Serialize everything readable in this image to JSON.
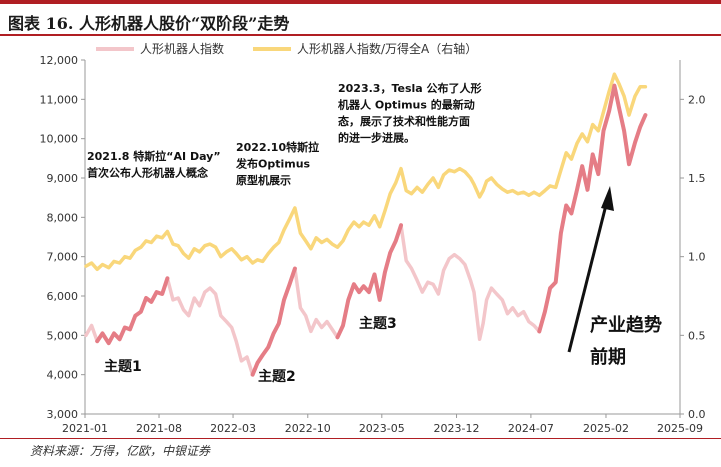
{
  "figure": {
    "title": "图表 16. 人形机器人股价“双阶段”走势",
    "source": "资料来源：万得，亿欧，中银证券"
  },
  "colors": {
    "brand_red": "#b01e23",
    "robot_index": "#e57d86",
    "robot_index_light": "#f3c6ca",
    "ratio_series": "#f9d77b"
  },
  "chart_data": {
    "type": "line",
    "title": "",
    "xlabel": "",
    "ylabel": "",
    "y2label": "",
    "x_tick_labels": [
      "2021-01",
      "2021-08",
      "2022-03",
      "2022-10",
      "2023-05",
      "2023-12",
      "2024-07",
      "2025-02",
      "2025-09"
    ],
    "ylim": [
      3000,
      12000
    ],
    "y_ticks": [
      "3,000",
      "4,000",
      "5,000",
      "6,000",
      "7,000",
      "8,000",
      "9,000",
      "10,000",
      "11,000",
      "12,000"
    ],
    "y2lim": [
      0,
      2.25
    ],
    "y2_ticks": [
      "0.0",
      "0.5",
      "1.0",
      "1.5",
      "2.0"
    ],
    "legend_position": "top",
    "grid": false,
    "series": [
      {
        "name": "人形机器人指数",
        "axis": "left",
        "points": [
          [
            "2021-01-04",
            5000
          ],
          [
            "2021-01-20",
            5250
          ],
          [
            "2021-02-05",
            4850
          ],
          [
            "2021-02-20",
            5050
          ],
          [
            "2021-03-10",
            4800
          ],
          [
            "2021-03-25",
            5050
          ],
          [
            "2021-04-10",
            4900
          ],
          [
            "2021-04-25",
            5200
          ],
          [
            "2021-05-10",
            5150
          ],
          [
            "2021-05-25",
            5500
          ],
          [
            "2021-06-10",
            5600
          ],
          [
            "2021-06-25",
            5950
          ],
          [
            "2021-07-10",
            5850
          ],
          [
            "2021-07-25",
            6100
          ],
          [
            "2021-08-10",
            6050
          ],
          [
            "2021-08-25",
            6450
          ],
          [
            "2021-09-10",
            5900
          ],
          [
            "2021-09-25",
            5950
          ],
          [
            "2021-10-10",
            5650
          ],
          [
            "2021-10-25",
            5500
          ],
          [
            "2021-11-10",
            5950
          ],
          [
            "2021-11-25",
            5750
          ],
          [
            "2021-12-10",
            6100
          ],
          [
            "2021-12-25",
            6200
          ],
          [
            "2022-01-10",
            6050
          ],
          [
            "2022-01-25",
            5500
          ],
          [
            "2022-02-10",
            5350
          ],
          [
            "2022-02-25",
            5200
          ],
          [
            "2022-03-10",
            4850
          ],
          [
            "2022-03-25",
            4350
          ],
          [
            "2022-04-10",
            4450
          ],
          [
            "2022-04-26",
            4000
          ],
          [
            "2022-05-10",
            4300
          ],
          [
            "2022-05-25",
            4500
          ],
          [
            "2022-06-10",
            4700
          ],
          [
            "2022-06-25",
            5050
          ],
          [
            "2022-07-10",
            5300
          ],
          [
            "2022-07-25",
            5900
          ],
          [
            "2022-08-10",
            6300
          ],
          [
            "2022-08-25",
            6700
          ],
          [
            "2022-09-10",
            5700
          ],
          [
            "2022-09-25",
            5500
          ],
          [
            "2022-10-10",
            5100
          ],
          [
            "2022-10-25",
            5400
          ],
          [
            "2022-11-10",
            5200
          ],
          [
            "2022-11-25",
            5350
          ],
          [
            "2022-12-10",
            5150
          ],
          [
            "2022-12-25",
            4950
          ],
          [
            "2023-01-10",
            5250
          ],
          [
            "2023-01-25",
            5900
          ],
          [
            "2023-02-10",
            6300
          ],
          [
            "2023-02-25",
            6100
          ],
          [
            "2023-03-10",
            6250
          ],
          [
            "2023-03-25",
            6100
          ],
          [
            "2023-04-10",
            6550
          ],
          [
            "2023-04-25",
            5900
          ],
          [
            "2023-05-10",
            6600
          ],
          [
            "2023-05-25",
            7100
          ],
          [
            "2023-06-10",
            7400
          ],
          [
            "2023-06-25",
            7800
          ],
          [
            "2023-07-10",
            6900
          ],
          [
            "2023-07-25",
            6700
          ],
          [
            "2023-08-10",
            6400
          ],
          [
            "2023-08-25",
            6100
          ],
          [
            "2023-09-10",
            6350
          ],
          [
            "2023-09-25",
            6300
          ],
          [
            "2023-10-10",
            6050
          ],
          [
            "2023-10-25",
            6650
          ],
          [
            "2023-11-10",
            6950
          ],
          [
            "2023-11-25",
            7050
          ],
          [
            "2023-12-10",
            6950
          ],
          [
            "2023-12-25",
            6800
          ],
          [
            "2024-01-10",
            6400
          ],
          [
            "2024-01-20",
            6100
          ],
          [
            "2024-02-05",
            4900
          ],
          [
            "2024-02-15",
            5300
          ],
          [
            "2024-02-25",
            5900
          ],
          [
            "2024-03-10",
            6200
          ],
          [
            "2024-03-25",
            6050
          ],
          [
            "2024-04-10",
            5900
          ],
          [
            "2024-04-25",
            5550
          ],
          [
            "2024-05-10",
            5700
          ],
          [
            "2024-05-25",
            5500
          ],
          [
            "2024-06-10",
            5600
          ],
          [
            "2024-06-25",
            5350
          ],
          [
            "2024-07-10",
            5250
          ],
          [
            "2024-07-25",
            5100
          ],
          [
            "2024-08-10",
            5600
          ],
          [
            "2024-08-25",
            6200
          ],
          [
            "2024-09-10",
            6350
          ],
          [
            "2024-09-25",
            7600
          ],
          [
            "2024-10-10",
            8300
          ],
          [
            "2024-10-25",
            8100
          ],
          [
            "2024-11-10",
            8700
          ],
          [
            "2024-11-25",
            9300
          ],
          [
            "2024-12-10",
            8700
          ],
          [
            "2024-12-25",
            9600
          ],
          [
            "2025-01-10",
            9100
          ],
          [
            "2025-01-25",
            10200
          ],
          [
            "2025-02-10",
            10700
          ],
          [
            "2025-02-25",
            11350
          ],
          [
            "2025-03-10",
            10800
          ],
          [
            "2025-03-25",
            10200
          ],
          [
            "2025-04-08",
            9350
          ],
          [
            "2025-04-25",
            9900
          ],
          [
            "2025-05-10",
            10300
          ],
          [
            "2025-05-25",
            10600
          ]
        ]
      },
      {
        "name": "人形机器人指数/万得全A（右轴）",
        "axis": "right",
        "points": [
          [
            "2021-01-04",
            0.94
          ],
          [
            "2021-01-20",
            0.96
          ],
          [
            "2021-02-05",
            0.92
          ],
          [
            "2021-02-20",
            0.95
          ],
          [
            "2021-03-10",
            0.93
          ],
          [
            "2021-03-25",
            0.97
          ],
          [
            "2021-04-10",
            0.96
          ],
          [
            "2021-04-25",
            1.0
          ],
          [
            "2021-05-10",
            0.99
          ],
          [
            "2021-05-25",
            1.04
          ],
          [
            "2021-06-10",
            1.06
          ],
          [
            "2021-06-25",
            1.1
          ],
          [
            "2021-07-10",
            1.09
          ],
          [
            "2021-07-25",
            1.13
          ],
          [
            "2021-08-10",
            1.12
          ],
          [
            "2021-08-25",
            1.16
          ],
          [
            "2021-09-10",
            1.08
          ],
          [
            "2021-09-25",
            1.07
          ],
          [
            "2021-10-10",
            1.02
          ],
          [
            "2021-10-25",
            0.99
          ],
          [
            "2021-11-10",
            1.05
          ],
          [
            "2021-11-25",
            1.03
          ],
          [
            "2021-12-10",
            1.07
          ],
          [
            "2021-12-25",
            1.08
          ],
          [
            "2022-01-10",
            1.06
          ],
          [
            "2022-01-25",
            1.0
          ],
          [
            "2022-02-10",
            1.03
          ],
          [
            "2022-02-25",
            1.05
          ],
          [
            "2022-03-10",
            1.02
          ],
          [
            "2022-03-25",
            0.98
          ],
          [
            "2022-04-10",
            1.0
          ],
          [
            "2022-04-26",
            0.96
          ],
          [
            "2022-05-10",
            0.98
          ],
          [
            "2022-05-25",
            0.97
          ],
          [
            "2022-06-10",
            1.02
          ],
          [
            "2022-06-25",
            1.06
          ],
          [
            "2022-07-10",
            1.09
          ],
          [
            "2022-07-25",
            1.17
          ],
          [
            "2022-08-10",
            1.24
          ],
          [
            "2022-08-25",
            1.31
          ],
          [
            "2022-09-10",
            1.15
          ],
          [
            "2022-09-25",
            1.1
          ],
          [
            "2022-10-10",
            1.05
          ],
          [
            "2022-10-25",
            1.12
          ],
          [
            "2022-11-10",
            1.09
          ],
          [
            "2022-11-25",
            1.11
          ],
          [
            "2022-12-10",
            1.08
          ],
          [
            "2022-12-25",
            1.06
          ],
          [
            "2023-01-10",
            1.1
          ],
          [
            "2023-01-25",
            1.17
          ],
          [
            "2023-02-10",
            1.22
          ],
          [
            "2023-02-25",
            1.19
          ],
          [
            "2023-03-10",
            1.22
          ],
          [
            "2023-03-25",
            1.2
          ],
          [
            "2023-04-10",
            1.26
          ],
          [
            "2023-04-25",
            1.19
          ],
          [
            "2023-05-10",
            1.29
          ],
          [
            "2023-05-25",
            1.4
          ],
          [
            "2023-06-10",
            1.47
          ],
          [
            "2023-06-25",
            1.56
          ],
          [
            "2023-07-10",
            1.42
          ],
          [
            "2023-07-25",
            1.4
          ],
          [
            "2023-08-10",
            1.44
          ],
          [
            "2023-08-25",
            1.41
          ],
          [
            "2023-09-10",
            1.46
          ],
          [
            "2023-09-25",
            1.5
          ],
          [
            "2023-10-10",
            1.44
          ],
          [
            "2023-10-25",
            1.52
          ],
          [
            "2023-11-10",
            1.55
          ],
          [
            "2023-11-25",
            1.54
          ],
          [
            "2023-12-10",
            1.56
          ],
          [
            "2023-12-25",
            1.54
          ],
          [
            "2024-01-10",
            1.5
          ],
          [
            "2024-01-20",
            1.46
          ],
          [
            "2024-02-05",
            1.38
          ],
          [
            "2024-02-15",
            1.42
          ],
          [
            "2024-02-25",
            1.48
          ],
          [
            "2024-03-10",
            1.5
          ],
          [
            "2024-03-25",
            1.46
          ],
          [
            "2024-04-10",
            1.43
          ],
          [
            "2024-04-25",
            1.41
          ],
          [
            "2024-05-10",
            1.42
          ],
          [
            "2024-05-25",
            1.4
          ],
          [
            "2024-06-10",
            1.41
          ],
          [
            "2024-06-25",
            1.39
          ],
          [
            "2024-07-10",
            1.41
          ],
          [
            "2024-07-25",
            1.39
          ],
          [
            "2024-08-10",
            1.42
          ],
          [
            "2024-08-25",
            1.45
          ],
          [
            "2024-09-10",
            1.44
          ],
          [
            "2024-09-25",
            1.55
          ],
          [
            "2024-10-10",
            1.66
          ],
          [
            "2024-10-25",
            1.62
          ],
          [
            "2024-11-10",
            1.72
          ],
          [
            "2024-11-25",
            1.78
          ],
          [
            "2024-12-10",
            1.73
          ],
          [
            "2024-12-25",
            1.84
          ],
          [
            "2025-01-10",
            1.8
          ],
          [
            "2025-01-25",
            1.92
          ],
          [
            "2025-02-10",
            2.05
          ],
          [
            "2025-02-25",
            2.16
          ],
          [
            "2025-03-10",
            2.1
          ],
          [
            "2025-03-25",
            2.02
          ],
          [
            "2025-04-08",
            1.9
          ],
          [
            "2025-04-25",
            2.02
          ],
          [
            "2025-05-10",
            2.08
          ],
          [
            "2025-05-25",
            2.08
          ]
        ]
      }
    ],
    "annotations": [
      {
        "id": "ann-2021-08",
        "lines": [
          "2021.8 特斯拉“AI Day”",
          "首次公布人形机器人概念"
        ]
      },
      {
        "id": "ann-2022-10",
        "lines": [
          "2022.10特斯拉",
          "发布Optimus",
          "原型机展示"
        ]
      },
      {
        "id": "ann-2023-03",
        "lines": [
          "2023.3，Tesla 公布了人形",
          "机器人 Optimus 的最新动",
          "态，展示了技术和性能方面",
          "的进一步进展。"
        ]
      }
    ],
    "theme_labels": [
      "主题1",
      "主题2",
      "主题3"
    ],
    "trend_label": [
      "产业趋势",
      "前期"
    ]
  }
}
